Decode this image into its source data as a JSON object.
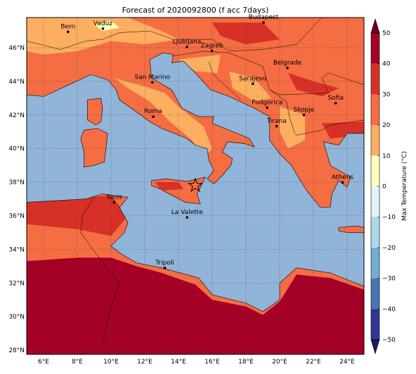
{
  "title": "Forecast of 2020092800 (f acc 7days)",
  "map": {
    "xlim": [
      5,
      25
    ],
    "ylim": [
      27.75,
      47.8
    ],
    "lon_ticks": [
      {
        "value": 6,
        "label": "6°E"
      },
      {
        "value": 8,
        "label": "8°E"
      },
      {
        "value": 10,
        "label": "10°E"
      },
      {
        "value": 12,
        "label": "12°E"
      },
      {
        "value": 14,
        "label": "14°E"
      },
      {
        "value": 16,
        "label": "16°E"
      },
      {
        "value": 18,
        "label": "18°E"
      },
      {
        "value": 20,
        "label": "20°E"
      },
      {
        "value": 22,
        "label": "22°E"
      },
      {
        "value": 24,
        "label": "24°E"
      }
    ],
    "lat_ticks": [
      {
        "value": 28,
        "label": "28°N"
      },
      {
        "value": 30,
        "label": "30°N"
      },
      {
        "value": 32,
        "label": "32°N"
      },
      {
        "value": 34,
        "label": "34°N"
      },
      {
        "value": 36,
        "label": "36°N"
      },
      {
        "value": 38,
        "label": "38°N"
      },
      {
        "value": 40,
        "label": "40°N"
      },
      {
        "value": 42,
        "label": "42°N"
      },
      {
        "value": 44,
        "label": "44°N"
      },
      {
        "value": 46,
        "label": "46°N"
      }
    ],
    "grid": true
  },
  "cities": [
    "Bern",
    "Vaduz",
    "Budapest",
    "Ljubljana",
    "Zagreb",
    "San Marino",
    "Belgrade",
    "Sarajevo",
    "Sofia",
    "Podgorica",
    "Skopje",
    "Roma",
    "Tirana",
    "Athens",
    "Tunis",
    "La Valette",
    "Tripoli"
  ],
  "colorbar": {
    "label": "Max Temperature (°C)",
    "limits": [
      -50,
      50
    ],
    "ticks": [
      {
        "value": -50,
        "label": "−50"
      },
      {
        "value": -40,
        "label": "−40"
      },
      {
        "value": -30,
        "label": "−30"
      },
      {
        "value": -20,
        "label": "−20"
      },
      {
        "value": -10,
        "label": "−10"
      },
      0,
      10,
      20,
      30,
      40,
      50
    ],
    "colors": [
      "#313695",
      "#4575b4",
      "#74add1",
      "#abd9e9",
      "#e0f3f8",
      "#ffffbf",
      "#fdae61",
      "#f46d43",
      "#d73027",
      "#a50026"
    ],
    "under_color": "#1a1a60",
    "over_color": "#67001f"
  }
}
